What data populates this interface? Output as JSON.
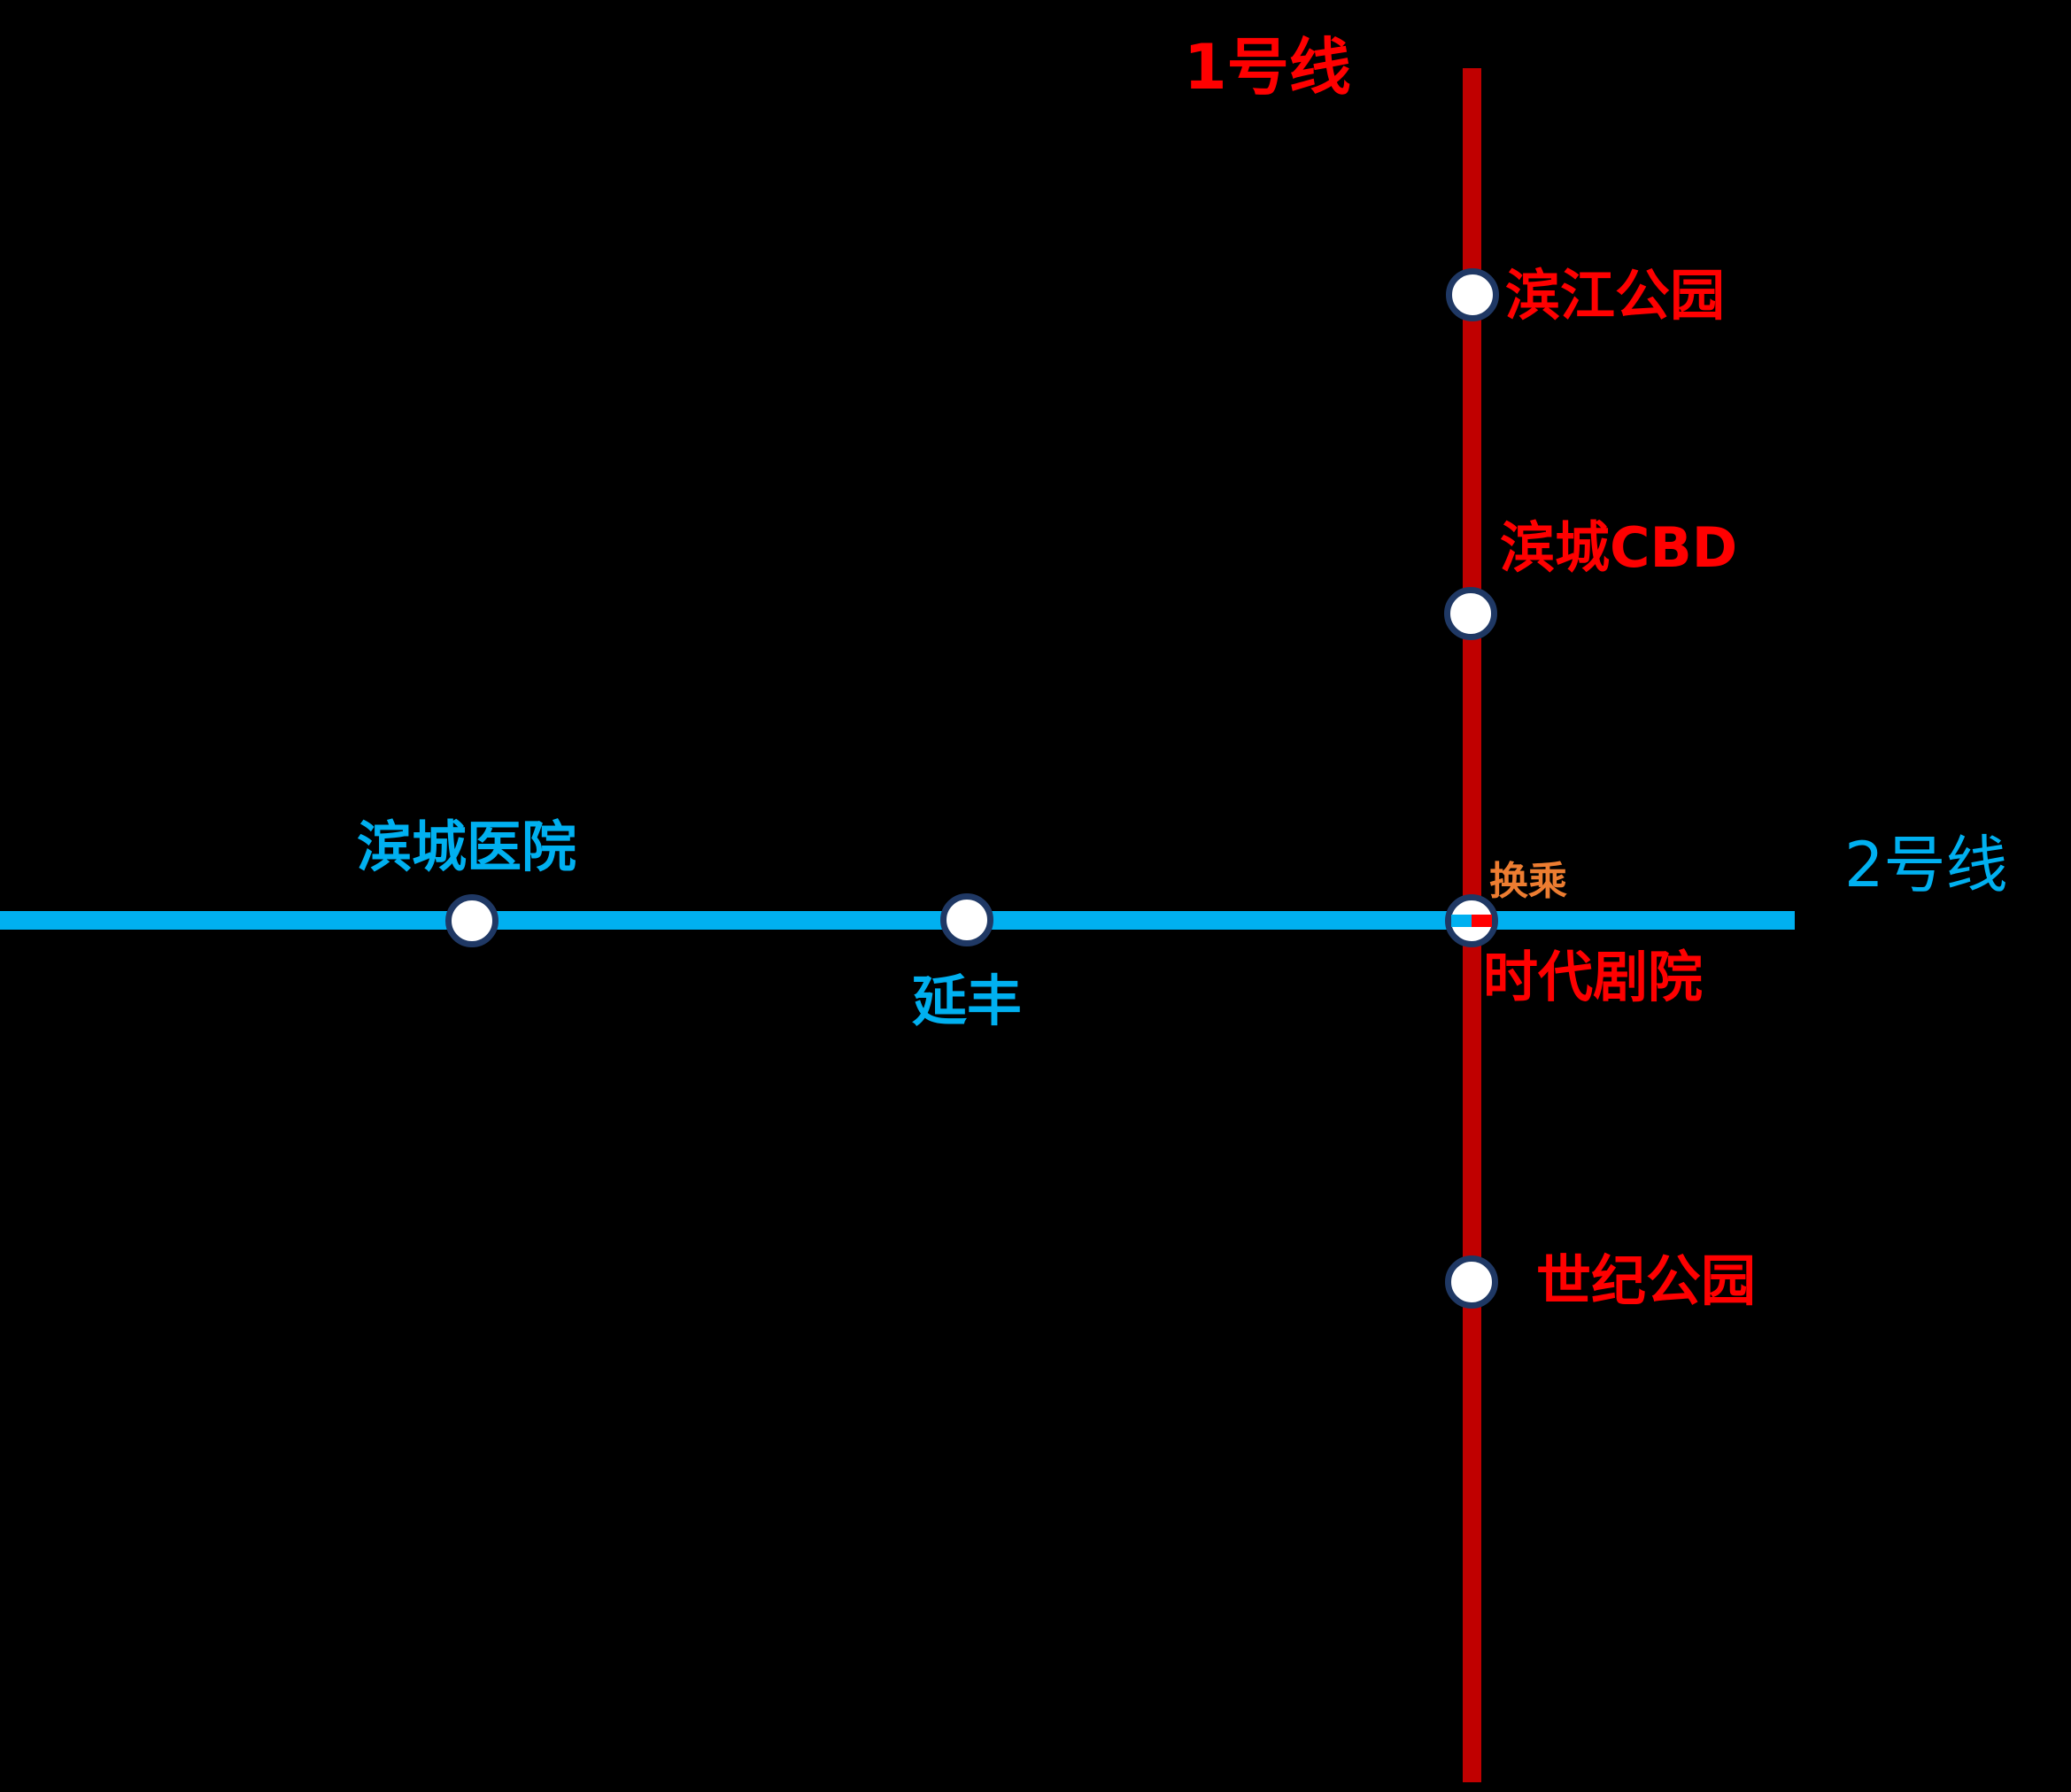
{
  "colors": {
    "background": "#000000",
    "line1": "#C00000",
    "line1_label": "#FF0000",
    "line2": "#00B0F0",
    "transfer_label": "#ED7D31",
    "station_fill": "#FFFFFF",
    "station_border": "#1F3864"
  },
  "line1": {
    "label": "1号线",
    "stations": [
      {
        "name": "滨江公园"
      },
      {
        "name": "滨城CBD"
      },
      {
        "name": "时代剧院",
        "transfer": true
      },
      {
        "name": "世纪公园"
      }
    ]
  },
  "line2": {
    "label": "2号线",
    "stations": [
      {
        "name": "滨城医院"
      },
      {
        "name": "延丰"
      },
      {
        "name": "时代剧院",
        "transfer": true
      }
    ]
  },
  "transfer": {
    "label": "换乘"
  }
}
